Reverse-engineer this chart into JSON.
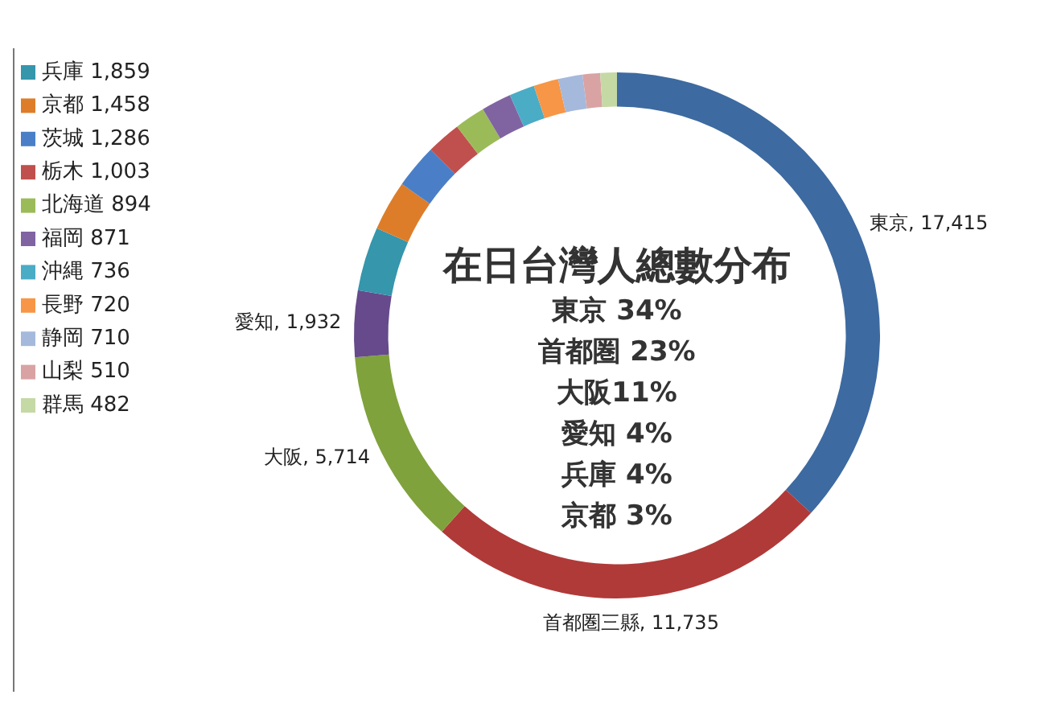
{
  "chart_data": {
    "type": "donut",
    "title": "在日台灣人總數分布",
    "categories": [
      "東京",
      "首都圏三縣",
      "大阪",
      "愛知",
      "兵庫",
      "京都",
      "茨城",
      "栃木",
      "北海道",
      "福岡",
      "沖縄",
      "長野",
      "静岡",
      "山梨",
      "群馬"
    ],
    "values": [
      17415,
      11735,
      5714,
      1932,
      1859,
      1458,
      1286,
      1003,
      894,
      871,
      736,
      720,
      710,
      510,
      482
    ],
    "value_labels": [
      "17,415",
      "11,735",
      "5,714",
      "1,932",
      "1,859",
      "1,458",
      "1,286",
      "1,003",
      "894",
      "871",
      "736",
      "720",
      "710",
      "510",
      "482"
    ],
    "colors": [
      "#3d6aa0",
      "#b03a38",
      "#7fa23c",
      "#664a8c",
      "#3596ac",
      "#dd7d2a",
      "#4a7fc7",
      "#c0504d",
      "#9bbb59",
      "#8064a2",
      "#4bacc6",
      "#f79646",
      "#a5b9dc",
      "#d9a3a3",
      "#c5d9a5"
    ],
    "annotations": [
      "東京 34%",
      "首都圏 23%",
      "大阪11%",
      "愛知 4%",
      "兵庫 4%",
      "京都 3%"
    ],
    "legend": "left"
  }
}
